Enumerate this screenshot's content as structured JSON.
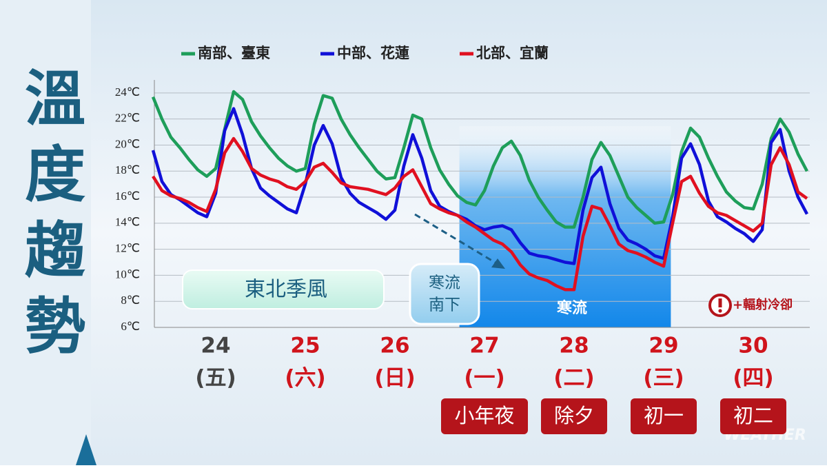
{
  "chart_data": {
    "type": "line",
    "title": [
      "溫",
      "度",
      "趨",
      "勢"
    ],
    "x": [
      23.8,
      23.9,
      24.0,
      24.1,
      24.2,
      24.3,
      24.4,
      24.5,
      24.6,
      24.7,
      24.8,
      24.9,
      25.0,
      25.1,
      25.2,
      25.3,
      25.4,
      25.5,
      25.6,
      25.7,
      25.8,
      25.9,
      26.0,
      26.1,
      26.2,
      26.3,
      26.4,
      26.5,
      26.6,
      26.7,
      26.8,
      26.9,
      27.0,
      27.1,
      27.2,
      27.3,
      27.4,
      27.5,
      27.6,
      27.7,
      27.8,
      27.9,
      28.0,
      28.1,
      28.2,
      28.3,
      28.4,
      28.5,
      28.6,
      28.7,
      28.8,
      28.9,
      29.0,
      29.1,
      29.2,
      29.3,
      29.4,
      29.5,
      29.6,
      29.7,
      29.8,
      29.9,
      30.0,
      30.1,
      30.2,
      30.3,
      30.4,
      30.5,
      30.6,
      30.7,
      30.8,
      30.9,
      31.0,
      31.1
    ],
    "xlim": [
      23.8,
      31.1
    ],
    "x_labels": [
      {
        "value": 24.5,
        "label": "24",
        "weekday": "(五)",
        "color": "#444444"
      },
      {
        "value": 25.5,
        "label": "25",
        "weekday": "(六)",
        "color": "#d0141c"
      },
      {
        "value": 26.5,
        "label": "26",
        "weekday": "(日)",
        "color": "#d0141c"
      },
      {
        "value": 27.5,
        "label": "27",
        "weekday": "(一)",
        "color": "#d0141c",
        "holiday": "小年夜"
      },
      {
        "value": 28.5,
        "label": "28",
        "weekday": "(二)",
        "color": "#d0141c",
        "holiday": "除夕"
      },
      {
        "value": 29.5,
        "label": "29",
        "weekday": "(三)",
        "color": "#d0141c",
        "holiday": "初一"
      },
      {
        "value": 30.5,
        "label": "30",
        "weekday": "(四)",
        "color": "#d0141c",
        "holiday": "初二"
      }
    ],
    "ylim": [
      6,
      25
    ],
    "yticks": [
      {
        "value": 6,
        "label": "6℃"
      },
      {
        "value": 8,
        "label": "8℃"
      },
      {
        "value": 10,
        "label": "10℃"
      },
      {
        "value": 12,
        "label": "12℃"
      },
      {
        "value": 14,
        "label": "14℃"
      },
      {
        "value": 16,
        "label": "16℃"
      },
      {
        "value": 18,
        "label": "18℃"
      },
      {
        "value": 20,
        "label": "20℃"
      },
      {
        "value": 22,
        "label": "22℃"
      },
      {
        "value": 24,
        "label": "24℃"
      }
    ],
    "grid": true,
    "series": [
      {
        "name": "南部、臺東",
        "color": "#1e9e5a",
        "values": [
          23.7,
          22,
          20.6,
          19.8,
          18.9,
          18.1,
          17.6,
          18.2,
          21.2,
          24.1,
          23.5,
          21.8,
          20.7,
          19.8,
          19,
          18.4,
          18,
          18.2,
          21.6,
          23.8,
          23.6,
          22,
          20.8,
          19.8,
          18.9,
          18,
          17.4,
          17.5,
          19.8,
          22.3,
          22,
          19.8,
          18.1,
          17,
          16.1,
          15.6,
          15.4,
          16.5,
          18.4,
          19.8,
          20.3,
          19.2,
          17.3,
          16,
          15,
          14.1,
          13.7,
          13.7,
          16,
          18.9,
          20.2,
          19.2,
          17.6,
          16,
          15.2,
          14.6,
          14,
          14.1,
          16.2,
          19.5,
          21.3,
          20.6,
          19,
          17.6,
          16.4,
          15.7,
          15.2,
          15.1,
          17,
          20.5,
          22,
          21,
          19.3,
          18
        ]
      },
      {
        "name": "中部、花蓮",
        "color": "#1010d8",
        "values": [
          19.6,
          17.2,
          16.2,
          15.8,
          15.3,
          14.8,
          14.5,
          16.3,
          21.1,
          22.8,
          20.8,
          18.2,
          16.7,
          16.1,
          15.6,
          15.1,
          14.8,
          17,
          20,
          21.5,
          20.1,
          17.5,
          16.3,
          15.6,
          15.2,
          14.8,
          14.3,
          15,
          18.4,
          20.8,
          19,
          16.5,
          15.3,
          14.9,
          14.6,
          14.3,
          13.8,
          13.5,
          13.7,
          13.8,
          13.5,
          12.5,
          11.7,
          11.5,
          11.4,
          11.2,
          11,
          10.9,
          15,
          17.5,
          18.3,
          15.5,
          13.6,
          12.7,
          12.4,
          12,
          11.5,
          11.3,
          14.5,
          19,
          20.1,
          18.5,
          15.7,
          14.5,
          14.1,
          13.6,
          13.2,
          12.6,
          13.5,
          20.2,
          21.2,
          18,
          16,
          14.7
        ]
      },
      {
        "name": "北部、宜蘭",
        "color": "#e01020",
        "values": [
          17.6,
          16.5,
          16.1,
          15.9,
          15.6,
          15.2,
          14.9,
          16.6,
          19.4,
          20.5,
          19.5,
          18.2,
          17.7,
          17.4,
          17.2,
          16.8,
          16.6,
          17.2,
          18.3,
          18.6,
          17.9,
          17.1,
          16.8,
          16.7,
          16.6,
          16.4,
          16.2,
          16.7,
          17.6,
          18.1,
          16.8,
          15.5,
          15.1,
          14.8,
          14.6,
          14.1,
          13.7,
          13.2,
          12.7,
          12.4,
          11.8,
          10.8,
          10.1,
          9.8,
          9.6,
          9.2,
          8.9,
          8.9,
          13,
          15.3,
          15.1,
          13.8,
          12.4,
          11.9,
          11.7,
          11.4,
          11,
          10.7,
          14,
          17.2,
          17.6,
          16.3,
          15.3,
          14.8,
          14.6,
          14.2,
          13.8,
          13.4,
          14,
          18.5,
          19.8,
          18.5,
          16.4,
          15.9
        ]
      }
    ],
    "cold_span": {
      "label": "寒流",
      "x": [
        27.22,
        29.58
      ]
    },
    "annotations": {
      "monsoon": "東北季風",
      "cold_arrival": [
        "寒流",
        "南下"
      ],
      "radiative": "+輻射冷卻",
      "watermark": "WEATHER"
    }
  }
}
